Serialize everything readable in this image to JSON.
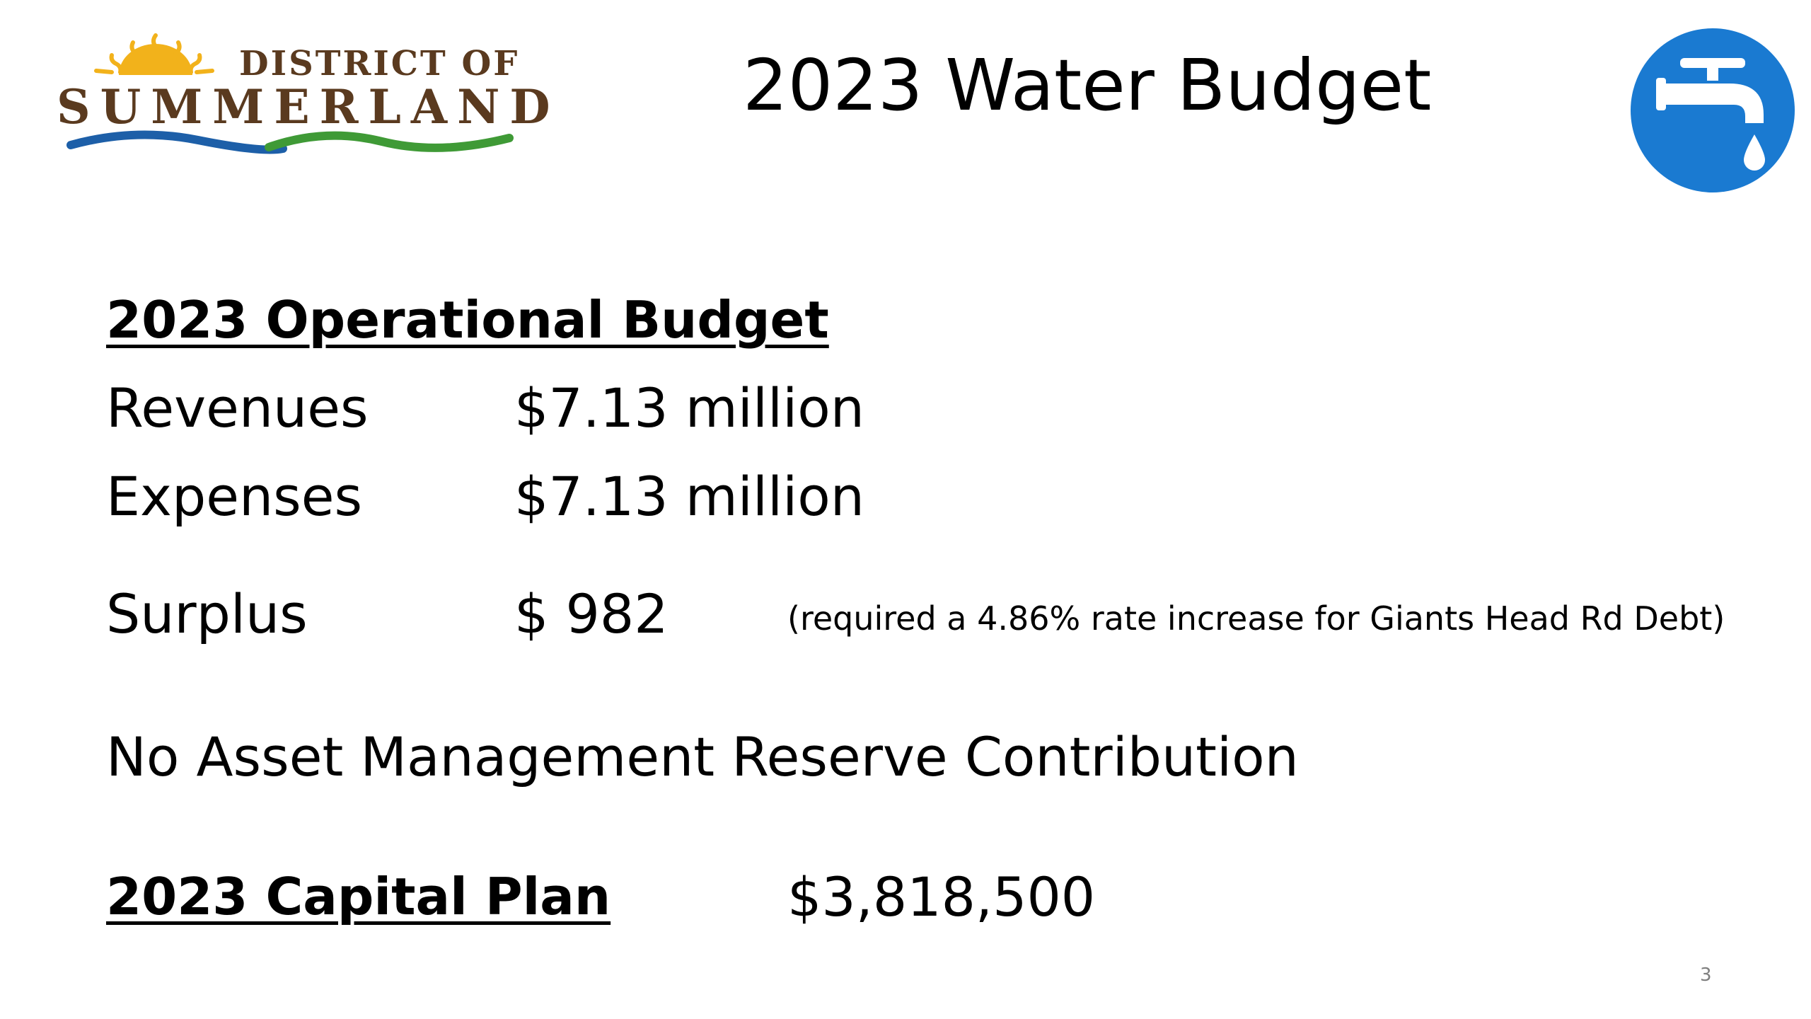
{
  "logo": {
    "top_text": "DISTRICT OF",
    "main_text": "SUMMERLAND",
    "colors": {
      "sun": "#f2b21b",
      "text": "#5a3a1f",
      "wave_blue": "#1d5fa8",
      "wave_green": "#3f9a36"
    }
  },
  "title": "2023 Water Budget",
  "faucet_icon": {
    "name": "water-faucet-icon",
    "color": "#1a7ad1"
  },
  "operational": {
    "heading": "2023 Operational Budget",
    "rows": [
      {
        "label": "Revenues",
        "value": "$7.13 million",
        "note": ""
      },
      {
        "label": "Expenses",
        "value": "$7.13 million",
        "note": ""
      },
      {
        "label": "Surplus",
        "value": "$ 982",
        "note": "(required a 4.86% rate increase for Giants Head Rd Debt)"
      }
    ]
  },
  "reserve": "No Asset Management Reserve Contribution",
  "capital": {
    "heading": "2023 Capital Plan",
    "value": "$3,818,500"
  },
  "page_number": "3"
}
